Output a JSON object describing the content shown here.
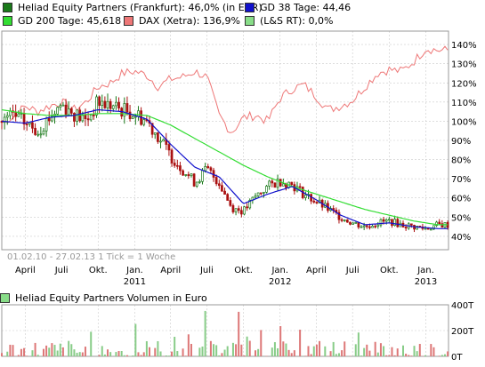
{
  "legend": {
    "items": [
      {
        "label": "Heliad Equity Partners (Frankfurt): 46,0% (in EUR)",
        "color": "#1a7a1a"
      },
      {
        "label": "GD 38 Tage: 44,46",
        "color": "#1010cc"
      },
      {
        "label": "GD 200 Tage: 45,618",
        "color": "#33dd33"
      },
      {
        "label": "DAX (Xetra): 136,9%",
        "color": "#ee7777"
      },
      {
        "label": "(L&S RT): 0,0%",
        "color": "#88dd88"
      }
    ]
  },
  "colors": {
    "up_candle": "#1a7a1a",
    "down_candle": "#aa1111",
    "ma38": "#1010cc",
    "ma200": "#33dd33",
    "dax": "#ee7777",
    "volume": "#dd7777",
    "grid": "#cccccc"
  },
  "chart_data": [
    {
      "type": "line",
      "series": [
        {
          "name": "Heliad Equity Partners (Frankfurt)",
          "x": [
            "2010-02-01",
            "2010-03-01",
            "2010-04-01",
            "2010-05-01",
            "2010-06-01",
            "2010-07-01",
            "2010-08-01",
            "2010-09-01",
            "2010-10-01",
            "2010-11-01",
            "2010-12-01",
            "2011-01-01",
            "2011-02-01",
            "2011-03-01",
            "2011-04-01",
            "2011-05-01",
            "2011-06-01",
            "2011-07-01",
            "2011-08-01",
            "2011-09-01",
            "2011-10-01",
            "2011-11-01",
            "2011-12-01",
            "2012-01-01",
            "2012-02-01",
            "2012-03-01",
            "2012-04-01",
            "2012-05-01",
            "2012-06-01",
            "2012-07-01",
            "2012-08-01",
            "2012-09-01",
            "2012-10-01",
            "2012-11-01",
            "2012-12-01",
            "2013-01-01",
            "2013-02-01"
          ],
          "y": [
            100,
            103,
            99,
            95,
            102,
            109,
            104,
            100,
            110,
            108,
            106,
            104,
            100,
            92,
            82,
            75,
            68,
            75,
            68,
            55,
            53,
            61,
            66,
            69,
            67,
            62,
            58,
            54,
            50,
            47,
            45,
            47,
            48,
            46,
            45,
            44,
            46
          ]
        },
        {
          "name": "GD 38 Tage",
          "x": [
            "2010-02-01",
            "2010-04-01",
            "2010-06-01",
            "2010-08-01",
            "2010-10-01",
            "2010-12-01",
            "2011-02-01",
            "2011-04-01",
            "2011-06-01",
            "2011-08-01",
            "2011-10-01",
            "2011-12-01",
            "2012-02-01",
            "2012-04-01",
            "2012-06-01",
            "2012-08-01",
            "2012-10-01",
            "2012-12-01",
            "2013-02-01"
          ],
          "y": [
            100,
            99,
            102,
            103,
            106,
            105,
            101,
            88,
            76,
            71,
            57,
            62,
            66,
            59,
            51,
            46,
            47,
            45,
            44
          ]
        },
        {
          "name": "GD 200 Tage",
          "x": [
            "2010-02-01",
            "2010-04-01",
            "2010-06-01",
            "2010-08-01",
            "2010-10-01",
            "2010-12-01",
            "2011-02-01",
            "2011-04-01",
            "2011-06-01",
            "2011-08-01",
            "2011-10-01",
            "2011-12-01",
            "2012-02-01",
            "2012-04-01",
            "2012-06-01",
            "2012-08-01",
            "2012-10-01",
            "2012-12-01",
            "2013-02-01"
          ],
          "y": [
            106,
            104,
            103,
            103,
            104,
            104,
            103,
            98,
            91,
            84,
            77,
            71,
            66,
            62,
            58,
            54,
            51,
            48,
            46
          ]
        },
        {
          "name": "DAX (Xetra)",
          "x": [
            "2010-02-01",
            "2010-03-01",
            "2010-04-01",
            "2010-05-01",
            "2010-06-01",
            "2010-07-01",
            "2010-08-01",
            "2010-09-01",
            "2010-10-01",
            "2010-11-01",
            "2010-12-01",
            "2011-01-01",
            "2011-02-01",
            "2011-03-01",
            "2011-04-01",
            "2011-05-01",
            "2011-06-01",
            "2011-07-01",
            "2011-08-01",
            "2011-09-01",
            "2011-10-01",
            "2011-11-01",
            "2011-12-01",
            "2012-01-01",
            "2012-02-01",
            "2012-03-01",
            "2012-04-01",
            "2012-05-01",
            "2012-06-01",
            "2012-07-01",
            "2012-08-01",
            "2012-09-01",
            "2012-10-01",
            "2012-11-01",
            "2012-12-01",
            "2013-01-01",
            "2013-02-01"
          ],
          "y": [
            100,
            102,
            108,
            105,
            108,
            110,
            106,
            110,
            118,
            120,
            125,
            126,
            124,
            118,
            122,
            123,
            126,
            123,
            103,
            94,
            102,
            103,
            100,
            112,
            117,
            119,
            113,
            106,
            108,
            111,
            118,
            125,
            127,
            126,
            131,
            138,
            137
          ]
        }
      ],
      "xlim": [
        "2010-02-01",
        "2013-02-27"
      ],
      "ylim": [
        33,
        147
      ],
      "y_ticks": [
        "140%",
        "130%",
        "120%",
        "110%",
        "100%",
        "90%",
        "80%",
        "70%",
        "60%",
        "50%",
        "40%"
      ],
      "y_tick_values": [
        140,
        130,
        120,
        110,
        100,
        90,
        80,
        70,
        60,
        50,
        40
      ],
      "x_ticks": [
        {
          "label": "April",
          "date": "2010-04-01"
        },
        {
          "label": "Juli",
          "date": "2010-07-01"
        },
        {
          "label": "Okt.",
          "date": "2010-10-01"
        },
        {
          "label": "Jan.",
          "date": "2011-01-01",
          "year": "2011"
        },
        {
          "label": "April",
          "date": "2011-04-01"
        },
        {
          "label": "Juli",
          "date": "2011-07-01"
        },
        {
          "label": "Okt.",
          "date": "2011-10-01"
        },
        {
          "label": "Jan.",
          "date": "2012-01-01",
          "year": "2012"
        },
        {
          "label": "April",
          "date": "2012-04-01"
        },
        {
          "label": "Juli",
          "date": "2012-07-01"
        },
        {
          "label": "Okt.",
          "date": "2012-10-01"
        },
        {
          "label": "Jan.",
          "date": "2013-01-01",
          "year": "2013"
        }
      ],
      "annotation": "01.02.10 - 27.02.13   1 Tick = 1 Woche",
      "grid": true
    },
    {
      "type": "bar",
      "title": "Heliad Equity Partners Volumen in Euro",
      "y_ticks": [
        "400T",
        "200T",
        "0T"
      ],
      "y_tick_values": [
        400,
        200,
        0
      ],
      "ylim": [
        0,
        400
      ],
      "grid": true
    }
  ]
}
